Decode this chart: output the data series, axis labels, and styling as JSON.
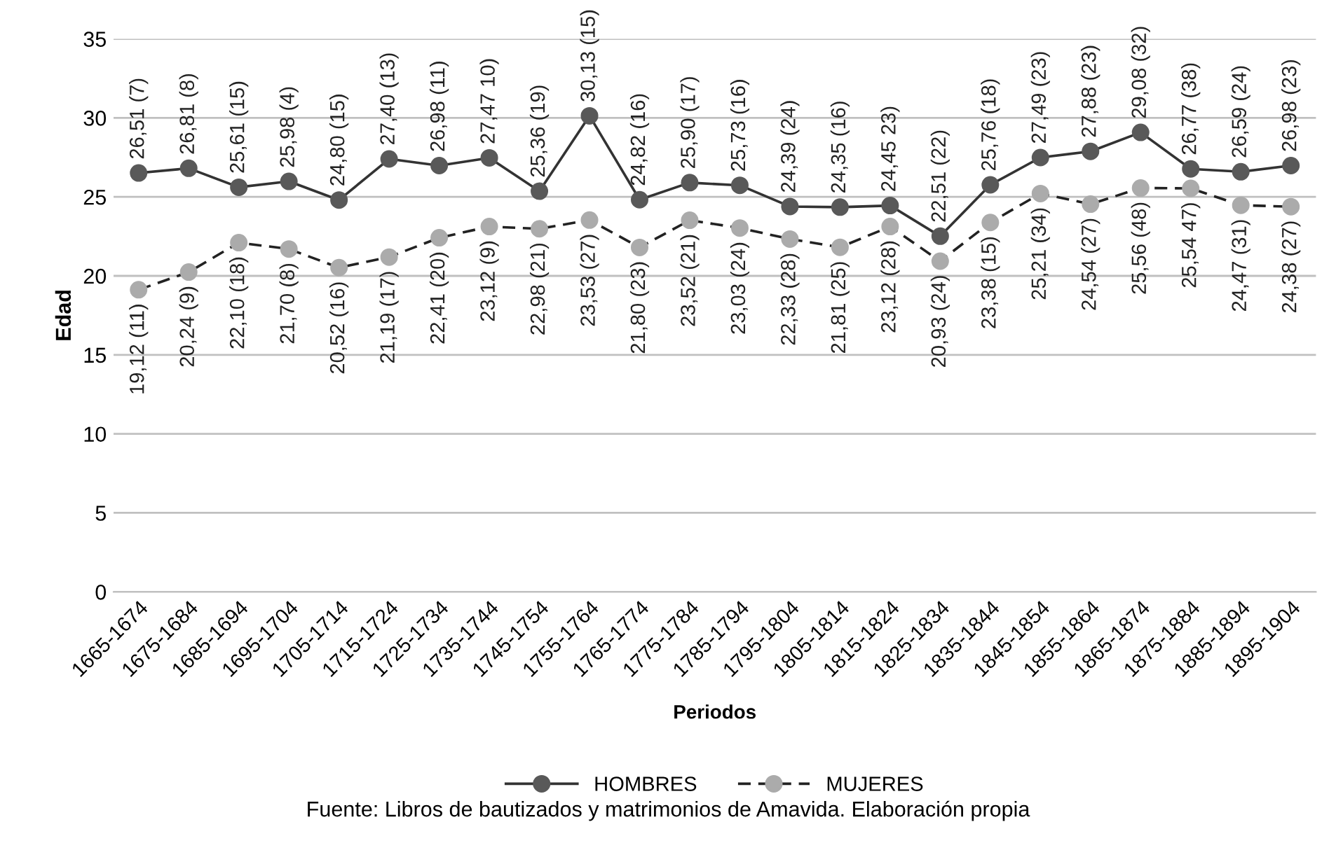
{
  "chart_data": {
    "type": "line",
    "xlabel": "Periodos",
    "ylabel": "Edad",
    "categories": [
      "1665-1674",
      "1675-1684",
      "1685-1694",
      "1695-1704",
      "1705-1714",
      "1715-1724",
      "1725-1734",
      "1735-1744",
      "1745-1754",
      "1755-1764",
      "1765-1774",
      "1775-1784",
      "1785-1794",
      "1795-1804",
      "1805-1814",
      "1815-1824",
      "1825-1834",
      "1835-1844",
      "1845-1854",
      "1855-1864",
      "1865-1874",
      "1875-1884",
      "1885-1894",
      "1895-1904"
    ],
    "series": [
      {
        "name": "HOMBRES",
        "color": "#595959",
        "line_style": "solid",
        "values": [
          26.51,
          26.81,
          25.61,
          25.98,
          24.8,
          27.4,
          26.98,
          27.47,
          25.36,
          30.13,
          24.82,
          25.9,
          25.73,
          24.39,
          24.35,
          24.45,
          22.51,
          25.76,
          27.49,
          27.88,
          29.08,
          26.77,
          26.59,
          26.98
        ],
        "value_labels": [
          "26,51 (7)",
          "26,81 (8)",
          "25,61 (15)",
          "25,98 (4)",
          "24,80 (15)",
          "27,40 (13)",
          "26,98 (11)",
          "27,47 10)",
          "25,36 (19)",
          "30,13 (15)",
          "24,82 (16)",
          "25,90 (17)",
          "25,73 (16)",
          "24,39 (24)",
          "24,35 (16)",
          "24,45 23)",
          "22,51 (22)",
          "25,76 (18)",
          "27,49 (23)",
          "27,88 (23)",
          "29,08 (32)",
          "26,77 (38)",
          "26,59 (24)",
          "26,98 (23)"
        ]
      },
      {
        "name": "MUJERES",
        "color": "#ababab",
        "line_style": "dashed",
        "values": [
          19.12,
          20.24,
          22.1,
          21.7,
          20.52,
          21.19,
          22.41,
          23.12,
          22.98,
          23.53,
          21.8,
          23.52,
          23.03,
          22.33,
          21.81,
          23.12,
          20.93,
          23.38,
          25.21,
          24.54,
          25.56,
          25.54,
          24.47,
          24.38
        ],
        "value_labels": [
          "19,12 (11)",
          "20,24 (9)",
          "22,10 (18)",
          "21,70 (8)",
          "20,52 (16)",
          "21,19 (17)",
          "22,41 (20)",
          "23,12 (9)",
          "22,98 (21)",
          "23,53 (27)",
          "21,80 (23)",
          "23,52 (21)",
          "23,03 (24)",
          "22,33 (28)",
          "21,81 (25)",
          "23,12 (28)",
          "20,93 (24)",
          "23,38 (15)",
          "25,21 (34)",
          "24,54 (27)",
          "25,56 (48)",
          "25,54 47)",
          "24,47 (31)",
          "24,38 (27)"
        ]
      }
    ],
    "ylim": [
      0,
      35
    ],
    "yticks": [
      0,
      5,
      10,
      15,
      20,
      25,
      30,
      35
    ],
    "grid": "y",
    "legend": "bottom",
    "marker": "circle",
    "annotations": [
      "Fuente: Libros de bautizados y matrimonios de Amavida. Elaboración propia"
    ]
  }
}
